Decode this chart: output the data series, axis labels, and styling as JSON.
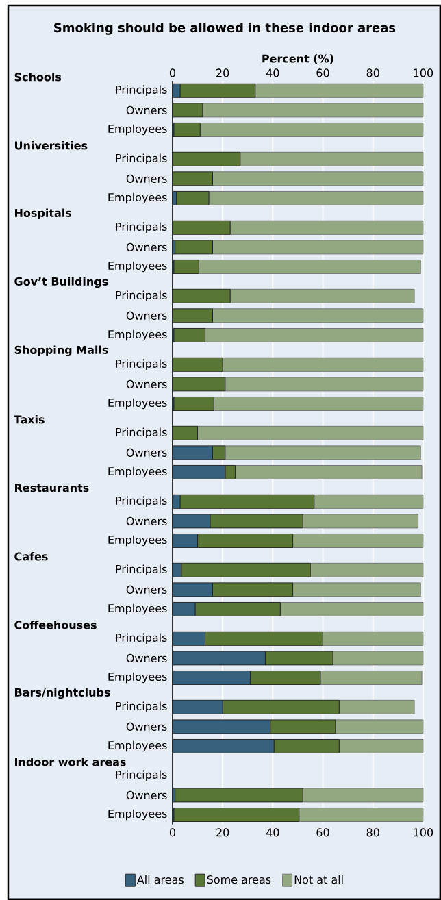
{
  "chart_data": {
    "type": "bar",
    "orientation": "horizontal",
    "stacked": true,
    "title": "Smoking should be allowed in these indoor areas",
    "xlabel": "Percent (%)",
    "categories": [
      "Principals",
      "Owners",
      "Employees",
      "Principals",
      "Owners",
      "Employees",
      "Principals",
      "Owners",
      "Employees",
      "Principals",
      "Owners",
      "Employees",
      "Principals",
      "Owners",
      "Employees",
      "Principals",
      "Owners",
      "Employees",
      "Principals",
      "Owners",
      "Employees",
      "Principals",
      "Owners",
      "Employees",
      "Principals",
      "Owners",
      "Employees",
      "Principals",
      "Owners",
      "Employees",
      "Principals",
      "Owners",
      "Employees"
    ],
    "series": [
      {
        "name": "All areas",
        "color": "#37627e",
        "values": [
          3,
          0,
          0.5,
          0,
          0,
          1.5,
          0,
          1,
          0.5,
          0,
          0,
          0.5,
          0,
          0,
          0.5,
          0,
          16,
          21,
          3,
          15,
          10,
          3.5,
          16,
          9,
          13,
          37,
          31,
          20,
          39,
          40.5,
          null,
          1,
          0.5
        ]
      },
      {
        "name": "Some areas",
        "color": "#5a7634",
        "values": [
          30,
          12,
          10.5,
          27,
          16,
          13,
          23,
          15,
          10,
          23,
          16,
          12.5,
          20,
          21,
          16,
          10,
          5,
          4,
          53.5,
          37,
          38,
          51.5,
          32,
          34,
          47,
          27,
          28,
          46.5,
          26,
          26,
          null,
          51,
          50
        ]
      },
      {
        "name": "Not at all",
        "color": "#93a781",
        "values": [
          67,
          88,
          89,
          73,
          84,
          85.5,
          77,
          84,
          88.5,
          73.5,
          84,
          87,
          80,
          79,
          83.5,
          90,
          78,
          74.5,
          43.5,
          46,
          52,
          45,
          51,
          57,
          40,
          36,
          40.5,
          30,
          35,
          33.5,
          null,
          48,
          49.5
        ]
      }
    ],
    "xlim": [
      0,
      100
    ],
    "xticks": [
      0,
      20,
      40,
      60,
      80,
      100
    ],
    "x2lim": [
      0,
      100
    ],
    "x2ticks": [
      0,
      20,
      40,
      60,
      80,
      100
    ],
    "grid": "x",
    "legend": "bottom",
    "annotations": [
      "Schools",
      "Universities",
      "Hospitals",
      "Gov’t Buildings",
      "Shopping Malls",
      "Taxis",
      "Restaurants",
      "Cafes",
      "Coffeehouses",
      "Bars/nightclubs",
      "Indoor work areas"
    ]
  }
}
